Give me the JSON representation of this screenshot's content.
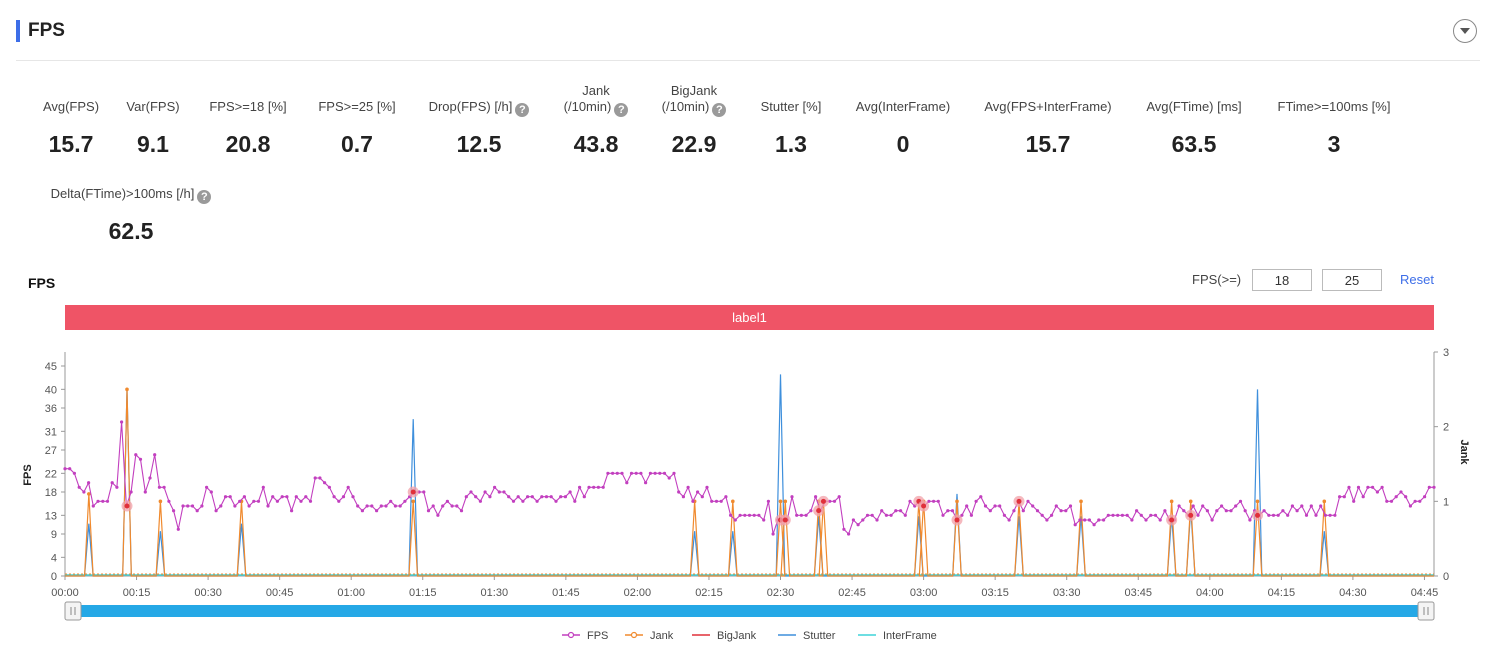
{
  "header": {
    "title": "FPS"
  },
  "metrics": [
    {
      "label": "Avg(FPS)",
      "value": "15.7"
    },
    {
      "label": "Var(FPS)",
      "value": "9.1"
    },
    {
      "label": "FPS>=18 [%]",
      "value": "20.8"
    },
    {
      "label": "FPS>=25 [%]",
      "value": "0.7"
    },
    {
      "label": "Drop(FPS) [/h]",
      "value": "12.5"
    },
    {
      "label": "Jank",
      "label2": "(/10min)",
      "value": "43.8"
    },
    {
      "label": "BigJank",
      "label2": "(/10min)",
      "value": "22.9"
    },
    {
      "label": "Stutter [%]",
      "value": "1.3"
    },
    {
      "label": "Avg(InterFrame)",
      "value": "0"
    },
    {
      "label": "Avg(FPS+InterFrame)",
      "value": "15.7"
    },
    {
      "label": "Avg(FTime) [ms]",
      "value": "63.5"
    },
    {
      "label": "FTime>=100ms [%]",
      "value": "3"
    },
    {
      "label": "Delta(FTime)>100ms [/h]",
      "value": "62.5"
    }
  ],
  "help_icon": "question-circle-icon",
  "chart_title": "FPS",
  "controls": {
    "label": "FPS(>=)",
    "min_value": "18",
    "max_value": "25",
    "reset_label": "Reset"
  },
  "label_band": "label1",
  "chart_data": {
    "type": "line",
    "x_ticks": [
      "00:00",
      "00:15",
      "00:30",
      "00:45",
      "01:00",
      "01:15",
      "01:30",
      "01:45",
      "02:00",
      "02:15",
      "02:30",
      "02:45",
      "03:00",
      "03:15",
      "03:30",
      "03:45",
      "04:00",
      "04:15",
      "04:30",
      "04:45"
    ],
    "x_range_seconds": [
      0,
      287
    ],
    "y_left": {
      "label": "FPS",
      "ticks": [
        0,
        4,
        9,
        13,
        18,
        22,
        27,
        31,
        36,
        40,
        45
      ],
      "range": [
        0,
        48
      ]
    },
    "y_right": {
      "label": "Jank",
      "ticks": [
        0,
        1,
        2,
        3
      ],
      "range": [
        0,
        3
      ]
    },
    "fps_values": [
      23,
      23,
      22,
      19,
      18,
      20,
      15,
      16,
      16,
      16,
      20,
      19,
      33,
      15,
      18,
      26,
      25,
      18,
      21,
      26,
      19,
      19,
      16,
      14,
      10,
      15,
      15,
      15,
      14,
      15,
      19,
      18,
      14,
      15,
      17,
      17,
      15,
      16,
      17,
      15,
      16,
      16,
      19,
      15,
      17,
      16,
      17,
      17,
      14,
      17,
      16,
      17,
      16,
      21,
      21,
      20,
      19,
      17,
      16,
      17,
      19,
      17,
      15,
      14,
      15,
      15,
      14,
      15,
      15,
      16,
      15,
      15,
      16,
      17,
      18,
      18,
      18,
      14,
      15,
      13,
      15,
      16,
      15,
      15,
      14,
      17,
      18,
      17,
      16,
      18,
      17,
      19,
      18,
      18,
      17,
      16,
      17,
      16,
      17,
      17,
      16,
      17,
      17,
      17,
      16,
      17,
      17,
      18,
      16,
      19,
      17,
      19,
      19,
      19,
      19,
      22,
      22,
      22,
      22,
      20,
      22,
      22,
      22,
      20,
      22,
      22,
      22,
      22,
      21,
      22,
      18,
      17,
      19,
      16,
      18,
      17,
      19,
      16,
      16,
      16,
      17,
      13,
      12,
      13,
      13,
      13,
      13,
      13,
      12,
      16,
      9,
      12,
      12,
      12,
      17,
      13,
      13,
      13,
      14,
      17,
      14,
      16,
      16,
      16,
      17,
      10,
      9,
      12,
      11,
      12,
      13,
      13,
      12,
      14,
      13,
      13,
      14,
      14,
      13,
      16,
      15,
      16,
      15,
      16,
      16,
      16,
      13,
      14,
      14,
      12,
      13,
      15,
      13,
      16,
      17,
      15,
      14,
      15,
      15,
      13,
      12,
      14,
      16,
      14,
      16,
      15,
      14,
      13,
      12,
      13,
      15,
      14,
      14,
      15,
      11,
      12,
      12,
      12,
      11,
      12,
      12,
      13,
      13,
      13,
      13,
      13,
      12,
      14,
      13,
      12,
      13,
      13,
      12,
      14,
      12,
      12,
      15,
      14,
      13,
      15,
      13,
      15,
      14,
      12,
      14,
      15,
      14,
      14,
      15,
      16,
      14,
      12,
      14,
      13,
      14,
      13,
      13,
      13,
      14,
      13,
      15,
      14,
      15,
      13,
      15,
      13,
      15,
      13,
      13,
      13,
      17,
      17,
      19,
      16,
      19,
      17,
      19,
      19,
      18,
      19,
      16,
      16,
      17,
      18,
      17,
      15,
      16,
      16,
      17,
      19,
      19
    ],
    "jank_markers_seconds": [
      13,
      73,
      150,
      151,
      158,
      159,
      179,
      180,
      187,
      200,
      232,
      236,
      250
    ],
    "jank_spikes": [
      [
        5,
        1.1
      ],
      [
        13,
        2.5
      ],
      [
        20,
        1.0
      ],
      [
        37,
        1.0
      ],
      [
        73,
        1.0
      ],
      [
        132,
        1.0
      ],
      [
        140,
        1.0
      ],
      [
        150,
        1.0
      ],
      [
        151,
        1.0
      ],
      [
        158,
        1.0
      ],
      [
        159,
        1.0
      ],
      [
        179,
        1.0
      ],
      [
        180,
        1.0
      ],
      [
        187,
        1.0
      ],
      [
        200,
        1.0
      ],
      [
        213,
        1.0
      ],
      [
        232,
        1.0
      ],
      [
        236,
        1.0
      ],
      [
        250,
        1.0
      ],
      [
        264,
        1.0
      ]
    ],
    "stutter_spikes": [
      [
        5,
        0.7
      ],
      [
        13,
        2.5
      ],
      [
        20,
        0.6
      ],
      [
        37,
        0.7
      ],
      [
        73,
        2.1
      ],
      [
        132,
        0.6
      ],
      [
        140,
        0.6
      ],
      [
        150,
        2.7
      ],
      [
        158,
        0.8
      ],
      [
        179,
        0.8
      ],
      [
        187,
        1.1
      ],
      [
        200,
        0.8
      ],
      [
        213,
        0.8
      ],
      [
        232,
        0.8
      ],
      [
        236,
        0.9
      ],
      [
        250,
        2.5
      ],
      [
        264,
        0.6
      ]
    ],
    "series": [
      {
        "name": "FPS",
        "color": "#c23fbf"
      },
      {
        "name": "Jank",
        "color": "#f08a2e"
      },
      {
        "name": "BigJank",
        "color": "#e0303a"
      },
      {
        "name": "Stutter",
        "color": "#3e8fdc"
      },
      {
        "name": "InterFrame",
        "color": "#3ed3d8"
      }
    ],
    "legend_position": "bottom-center",
    "slider_color": "#25a8e6"
  }
}
